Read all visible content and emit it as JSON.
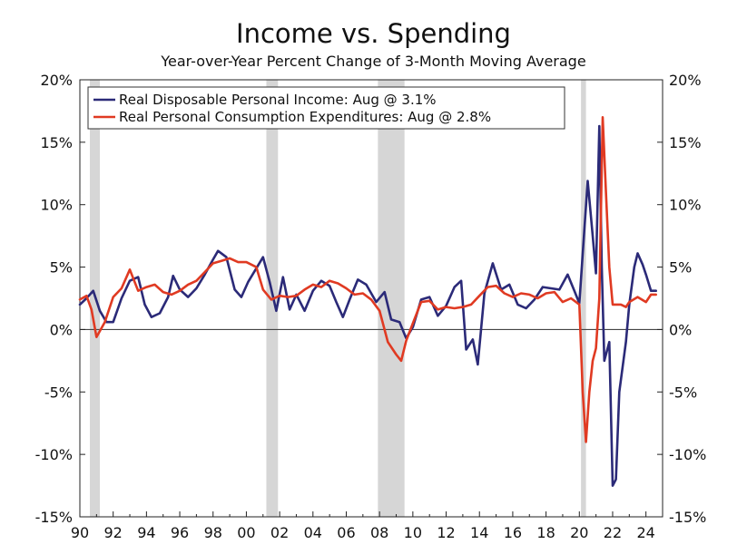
{
  "chart_data": {
    "type": "line",
    "title": "Income vs. Spending",
    "subtitle": "Year-over-Year Percent Change of 3-Month Moving Average",
    "xlabel": "",
    "ylabel": "",
    "xlim": [
      1990,
      2025
    ],
    "ylim": [
      -15,
      20
    ],
    "x_ticks": [
      "90",
      "92",
      "94",
      "96",
      "98",
      "00",
      "02",
      "04",
      "06",
      "08",
      "10",
      "12",
      "14",
      "16",
      "18",
      "20",
      "22",
      "24"
    ],
    "y_ticks_left": [
      "20%",
      "15%",
      "10%",
      "5%",
      "0%",
      "-5%",
      "-10%",
      "-15%"
    ],
    "y_ticks_right": [
      "20%",
      "15%",
      "10%",
      "5%",
      "0%",
      "-5%",
      "-10%",
      "-15%"
    ],
    "recessions": [
      [
        1990.6,
        1991.2
      ],
      [
        2001.2,
        2001.9
      ],
      [
        2007.9,
        2009.5
      ],
      [
        2020.1,
        2020.4
      ]
    ],
    "legend_position": "top-left",
    "grid": false,
    "series": [
      {
        "name": "Real Disposable Personal Income: Aug @ 3.1%",
        "color": "#2b2a78",
        "points": [
          [
            1990.0,
            2.0
          ],
          [
            1990.4,
            2.5
          ],
          [
            1990.8,
            3.1
          ],
          [
            1991.2,
            1.5
          ],
          [
            1991.6,
            0.6
          ],
          [
            1992.0,
            0.6
          ],
          [
            1992.5,
            2.5
          ],
          [
            1993.0,
            3.9
          ],
          [
            1993.5,
            4.2
          ],
          [
            1993.9,
            2.0
          ],
          [
            1994.3,
            1.0
          ],
          [
            1994.8,
            1.3
          ],
          [
            1995.3,
            2.6
          ],
          [
            1995.6,
            4.3
          ],
          [
            1996.0,
            3.2
          ],
          [
            1996.5,
            2.6
          ],
          [
            1997.0,
            3.3
          ],
          [
            1997.5,
            4.4
          ],
          [
            1998.0,
            5.6
          ],
          [
            1998.3,
            6.3
          ],
          [
            1998.8,
            5.8
          ],
          [
            1999.3,
            3.2
          ],
          [
            1999.7,
            2.6
          ],
          [
            2000.1,
            3.8
          ],
          [
            2000.6,
            4.9
          ],
          [
            2001.0,
            5.8
          ],
          [
            2001.4,
            3.8
          ],
          [
            2001.8,
            1.5
          ],
          [
            2002.2,
            4.2
          ],
          [
            2002.6,
            1.6
          ],
          [
            2003.0,
            2.8
          ],
          [
            2003.5,
            1.5
          ],
          [
            2004.0,
            3.1
          ],
          [
            2004.5,
            3.9
          ],
          [
            2005.0,
            3.5
          ],
          [
            2005.4,
            2.2
          ],
          [
            2005.8,
            1.0
          ],
          [
            2006.2,
            2.4
          ],
          [
            2006.7,
            4.0
          ],
          [
            2007.2,
            3.6
          ],
          [
            2007.8,
            2.2
          ],
          [
            2008.3,
            3.0
          ],
          [
            2008.7,
            0.8
          ],
          [
            2009.2,
            0.6
          ],
          [
            2009.6,
            -0.7
          ],
          [
            2010.0,
            0.2
          ],
          [
            2010.5,
            2.4
          ],
          [
            2011.0,
            2.6
          ],
          [
            2011.5,
            1.1
          ],
          [
            2012.0,
            1.9
          ],
          [
            2012.5,
            3.4
          ],
          [
            2012.9,
            3.9
          ],
          [
            2013.2,
            -1.6
          ],
          [
            2013.6,
            -0.8
          ],
          [
            2013.9,
            -2.8
          ],
          [
            2014.3,
            2.9
          ],
          [
            2014.8,
            5.3
          ],
          [
            2015.3,
            3.2
          ],
          [
            2015.8,
            3.6
          ],
          [
            2016.3,
            2.0
          ],
          [
            2016.8,
            1.7
          ],
          [
            2017.3,
            2.4
          ],
          [
            2017.8,
            3.4
          ],
          [
            2018.3,
            3.3
          ],
          [
            2018.8,
            3.2
          ],
          [
            2019.3,
            4.4
          ],
          [
            2019.7,
            3.1
          ],
          [
            2020.0,
            2.1
          ],
          [
            2020.3,
            8.0
          ],
          [
            2020.5,
            11.9
          ],
          [
            2020.8,
            7.5
          ],
          [
            2021.0,
            4.5
          ],
          [
            2021.2,
            16.3
          ],
          [
            2021.35,
            5.0
          ],
          [
            2021.5,
            -2.5
          ],
          [
            2021.8,
            -1.0
          ],
          [
            2022.0,
            -12.5
          ],
          [
            2022.2,
            -12.0
          ],
          [
            2022.4,
            -5.0
          ],
          [
            2022.8,
            -1.0
          ],
          [
            2023.0,
            2.0
          ],
          [
            2023.3,
            5.0
          ],
          [
            2023.5,
            6.1
          ],
          [
            2023.8,
            5.2
          ],
          [
            2024.0,
            4.4
          ],
          [
            2024.3,
            3.1
          ],
          [
            2024.6,
            3.1
          ]
        ]
      },
      {
        "name": "Real Personal Consumption Expenditures: Aug @ 2.8%",
        "color": "#e03a22",
        "points": [
          [
            1990.0,
            2.4
          ],
          [
            1990.4,
            2.7
          ],
          [
            1990.7,
            1.6
          ],
          [
            1991.0,
            -0.6
          ],
          [
            1991.5,
            0.6
          ],
          [
            1992.0,
            2.6
          ],
          [
            1992.5,
            3.3
          ],
          [
            1993.0,
            4.8
          ],
          [
            1993.5,
            3.1
          ],
          [
            1994.0,
            3.4
          ],
          [
            1994.5,
            3.6
          ],
          [
            1995.0,
            3.0
          ],
          [
            1995.5,
            2.8
          ],
          [
            1996.0,
            3.1
          ],
          [
            1996.5,
            3.6
          ],
          [
            1997.0,
            3.9
          ],
          [
            1997.5,
            4.6
          ],
          [
            1998.0,
            5.3
          ],
          [
            1998.5,
            5.5
          ],
          [
            1999.0,
            5.7
          ],
          [
            1999.5,
            5.4
          ],
          [
            2000.0,
            5.4
          ],
          [
            2000.6,
            5.0
          ],
          [
            2001.0,
            3.2
          ],
          [
            2001.5,
            2.4
          ],
          [
            2002.0,
            2.7
          ],
          [
            2002.5,
            2.6
          ],
          [
            2003.0,
            2.7
          ],
          [
            2003.5,
            3.2
          ],
          [
            2004.0,
            3.6
          ],
          [
            2004.5,
            3.4
          ],
          [
            2005.0,
            3.9
          ],
          [
            2005.5,
            3.7
          ],
          [
            2006.0,
            3.3
          ],
          [
            2006.5,
            2.8
          ],
          [
            2007.0,
            2.9
          ],
          [
            2007.5,
            2.4
          ],
          [
            2008.0,
            1.5
          ],
          [
            2008.5,
            -1.0
          ],
          [
            2009.0,
            -2.0
          ],
          [
            2009.3,
            -2.5
          ],
          [
            2009.6,
            -0.9
          ],
          [
            2010.0,
            0.5
          ],
          [
            2010.5,
            2.2
          ],
          [
            2011.0,
            2.3
          ],
          [
            2011.5,
            1.6
          ],
          [
            2012.0,
            1.8
          ],
          [
            2012.5,
            1.7
          ],
          [
            2013.0,
            1.8
          ],
          [
            2013.5,
            2.0
          ],
          [
            2014.0,
            2.7
          ],
          [
            2014.5,
            3.4
          ],
          [
            2015.0,
            3.5
          ],
          [
            2015.5,
            2.9
          ],
          [
            2016.0,
            2.6
          ],
          [
            2016.5,
            2.9
          ],
          [
            2017.0,
            2.8
          ],
          [
            2017.5,
            2.5
          ],
          [
            2018.0,
            2.9
          ],
          [
            2018.5,
            3.0
          ],
          [
            2019.0,
            2.2
          ],
          [
            2019.5,
            2.5
          ],
          [
            2020.0,
            2.0
          ],
          [
            2020.2,
            -5.0
          ],
          [
            2020.4,
            -9.0
          ],
          [
            2020.6,
            -5.0
          ],
          [
            2020.8,
            -2.5
          ],
          [
            2021.0,
            -1.5
          ],
          [
            2021.2,
            2.5
          ],
          [
            2021.4,
            17.0
          ],
          [
            2021.6,
            11.0
          ],
          [
            2021.8,
            5.0
          ],
          [
            2022.0,
            2.0
          ],
          [
            2022.5,
            2.0
          ],
          [
            2022.8,
            1.8
          ],
          [
            2023.0,
            2.2
          ],
          [
            2023.5,
            2.6
          ],
          [
            2024.0,
            2.2
          ],
          [
            2024.3,
            2.8
          ],
          [
            2024.6,
            2.8
          ]
        ]
      }
    ]
  }
}
